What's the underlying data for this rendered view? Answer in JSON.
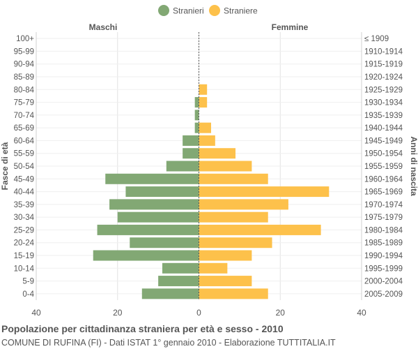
{
  "chart_data": {
    "type": "bar",
    "orientation": "horizontal-pyramid",
    "title": "Popolazione per cittadinanza straniera per età e sesso - 2010",
    "subtitle": "COMUNE DI RUFINA (FI) - Dati ISTAT 1° gennaio 2010 - Elaborazione TUTTITALIA.IT",
    "left_header": "Maschi",
    "right_header": "Femmine",
    "ylabel_left": "Fasce di età",
    "ylabel_right": "Anni di nascita",
    "legend_position": "top-center",
    "grid": true,
    "xlim": [
      -40,
      40
    ],
    "x_ticks": [
      {
        "value": -40,
        "label": "40"
      },
      {
        "value": -20,
        "label": "20"
      },
      {
        "value": 0,
        "label": "0"
      },
      {
        "value": 20,
        "label": "20"
      },
      {
        "value": 40,
        "label": "40"
      }
    ],
    "categories": [
      "100+",
      "95-99",
      "90-94",
      "85-89",
      "80-84",
      "75-79",
      "70-74",
      "65-69",
      "60-64",
      "55-59",
      "50-54",
      "45-49",
      "40-44",
      "35-39",
      "30-34",
      "25-29",
      "20-24",
      "15-19",
      "10-14",
      "5-9",
      "0-4"
    ],
    "birth_years": [
      "≤ 1909",
      "1910-1914",
      "1915-1919",
      "1920-1924",
      "1925-1929",
      "1930-1934",
      "1935-1939",
      "1940-1944",
      "1945-1949",
      "1950-1954",
      "1955-1959",
      "1960-1964",
      "1965-1969",
      "1970-1974",
      "1975-1979",
      "1980-1984",
      "1985-1989",
      "1990-1994",
      "1995-1999",
      "2000-2004",
      "2005-2009"
    ],
    "series": [
      {
        "name": "Stranieri",
        "side": "left",
        "color": "#82a874",
        "values": [
          0,
          0,
          0,
          0,
          0,
          1,
          1,
          1,
          4,
          4,
          8,
          23,
          18,
          22,
          20,
          25,
          17,
          26,
          9,
          10,
          14
        ]
      },
      {
        "name": "Straniere",
        "side": "right",
        "color": "#fdc14b",
        "values": [
          0,
          0,
          0,
          0,
          2,
          2,
          0,
          3,
          4,
          9,
          13,
          17,
          32,
          22,
          17,
          30,
          18,
          13,
          7,
          13,
          17
        ]
      }
    ]
  }
}
